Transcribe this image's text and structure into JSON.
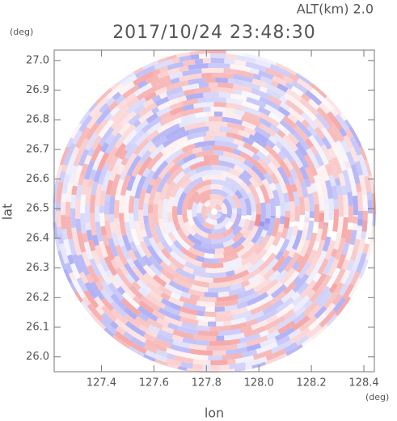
{
  "chart_data": {
    "type": "radar-image",
    "title": "2017/10/24 23:48:30",
    "subtitle": "ALT(km)  2.0",
    "x_label": "lon",
    "y_label": "lat",
    "x_unit": "(deg)",
    "y_unit": "(deg)",
    "xlim": [
      127.22,
      128.44
    ],
    "ylim": [
      25.95,
      27.035
    ],
    "xticks": [
      127.4,
      127.6,
      127.8,
      {
        "value": 128.0,
        "label": "128.0"
      },
      128.2,
      128.4
    ],
    "yticks": [
      {
        "value": 26.0,
        "label": "26.0"
      },
      26.1,
      26.2,
      26.3,
      26.4,
      26.5,
      26.6,
      26.7,
      26.8,
      26.9,
      {
        "value": 27.0,
        "label": "27.0"
      }
    ]
  }
}
